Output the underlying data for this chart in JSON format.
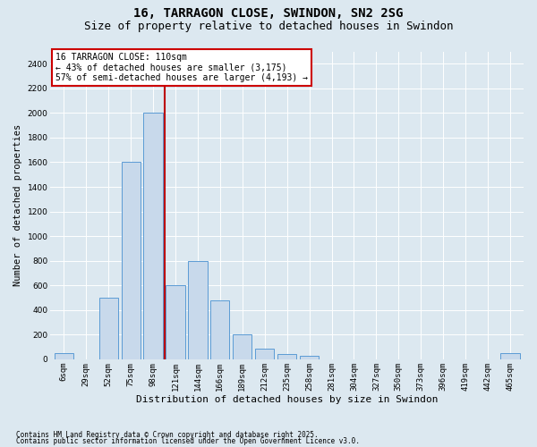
{
  "title1": "16, TARRAGON CLOSE, SWINDON, SN2 2SG",
  "title2": "Size of property relative to detached houses in Swindon",
  "xlabel": "Distribution of detached houses by size in Swindon",
  "ylabel": "Number of detached properties",
  "categories": [
    "6sqm",
    "29sqm",
    "52sqm",
    "75sqm",
    "98sqm",
    "121sqm",
    "144sqm",
    "166sqm",
    "189sqm",
    "212sqm",
    "235sqm",
    "258sqm",
    "281sqm",
    "304sqm",
    "327sqm",
    "350sqm",
    "373sqm",
    "396sqm",
    "419sqm",
    "442sqm",
    "465sqm"
  ],
  "values": [
    50,
    0,
    500,
    1600,
    2000,
    600,
    800,
    475,
    200,
    90,
    40,
    30,
    0,
    0,
    0,
    0,
    0,
    0,
    0,
    0,
    50
  ],
  "bar_color": "#c8d9eb",
  "bar_edge_color": "#5b9bd5",
  "vline_x": 4.5,
  "vline_color": "#bb0000",
  "annotation_text": "16 TARRAGON CLOSE: 110sqm\n← 43% of detached houses are smaller (3,175)\n57% of semi-detached houses are larger (4,193) →",
  "annotation_box_facecolor": "#ffffff",
  "annotation_box_edgecolor": "#cc0000",
  "ylim_max": 2500,
  "yticks": [
    0,
    200,
    400,
    600,
    800,
    1000,
    1200,
    1400,
    1600,
    1800,
    2000,
    2200,
    2400
  ],
  "bg_color": "#dce8f0",
  "footer1": "Contains HM Land Registry data © Crown copyright and database right 2025.",
  "footer2": "Contains public sector information licensed under the Open Government Licence v3.0.",
  "title1_fontsize": 10,
  "title2_fontsize": 9,
  "tick_fontsize": 6.5,
  "ylabel_fontsize": 7.5,
  "xlabel_fontsize": 8,
  "annotation_fontsize": 7,
  "footer_fontsize": 5.5
}
